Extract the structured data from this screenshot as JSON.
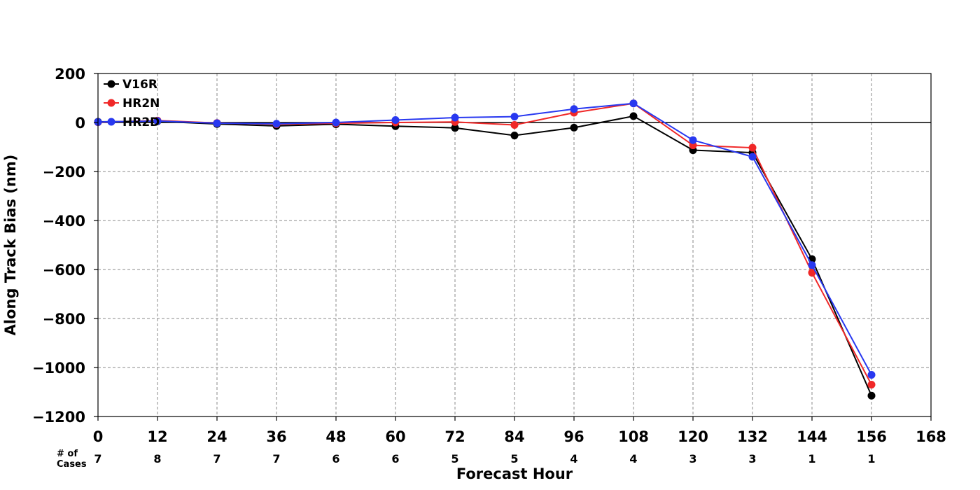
{
  "chart_data": {
    "type": "line",
    "title": "",
    "xlabel": "Forecast Hour",
    "ylabel": "Along Track Bias (nm)",
    "xlim": [
      0,
      168
    ],
    "ylim": [
      -1200,
      200
    ],
    "x_ticks": [
      0,
      12,
      24,
      36,
      48,
      60,
      72,
      84,
      96,
      108,
      120,
      132,
      144,
      156,
      168
    ],
    "x_tick_labels": [
      "0",
      "12",
      "24",
      "36",
      "48",
      "60",
      "72",
      "84",
      "96",
      "108",
      "120",
      "132",
      "144",
      "156",
      "168"
    ],
    "y_ticks": [
      200,
      0,
      -200,
      -400,
      -600,
      -800,
      -1000,
      -1200
    ],
    "y_tick_labels": [
      "200",
      "0",
      "−200",
      "−400",
      "−600",
      "−800",
      "−1000",
      "−1200"
    ],
    "grid": true,
    "zero_line": true,
    "legend_position": "upper-left",
    "cases_label": "# of\nCases",
    "cases": {
      "x": [
        0,
        12,
        24,
        36,
        48,
        60,
        72,
        84,
        96,
        108,
        120,
        132,
        144,
        156
      ],
      "values": [
        "7",
        "8",
        "7",
        "7",
        "6",
        "6",
        "5",
        "5",
        "4",
        "4",
        "3",
        "3",
        "1",
        "1"
      ]
    },
    "series": [
      {
        "name": "V16R",
        "color": "#000000",
        "x": [
          0,
          12,
          24,
          36,
          48,
          60,
          72,
          84,
          96,
          108,
          120,
          132,
          144,
          156
        ],
        "values": [
          3,
          5,
          -6,
          -14,
          -7,
          -15,
          -22,
          -53,
          -21,
          26,
          -113,
          -123,
          -558,
          -1115
        ]
      },
      {
        "name": "HR2N",
        "color": "#f02828",
        "x": [
          0,
          12,
          24,
          36,
          48,
          60,
          72,
          84,
          96,
          108,
          120,
          132,
          144,
          156
        ],
        "values": [
          1,
          8,
          -2,
          -7,
          -3,
          0,
          2,
          -10,
          40,
          78,
          -93,
          -103,
          -613,
          -1070
        ]
      },
      {
        "name": "HR2D",
        "color": "#2838f0",
        "x": [
          0,
          12,
          24,
          36,
          48,
          60,
          72,
          84,
          96,
          108,
          120,
          132,
          144,
          156
        ],
        "values": [
          2,
          6,
          -3,
          -5,
          0,
          10,
          20,
          24,
          55,
          78,
          -72,
          -140,
          -582,
          -1030
        ]
      }
    ]
  }
}
